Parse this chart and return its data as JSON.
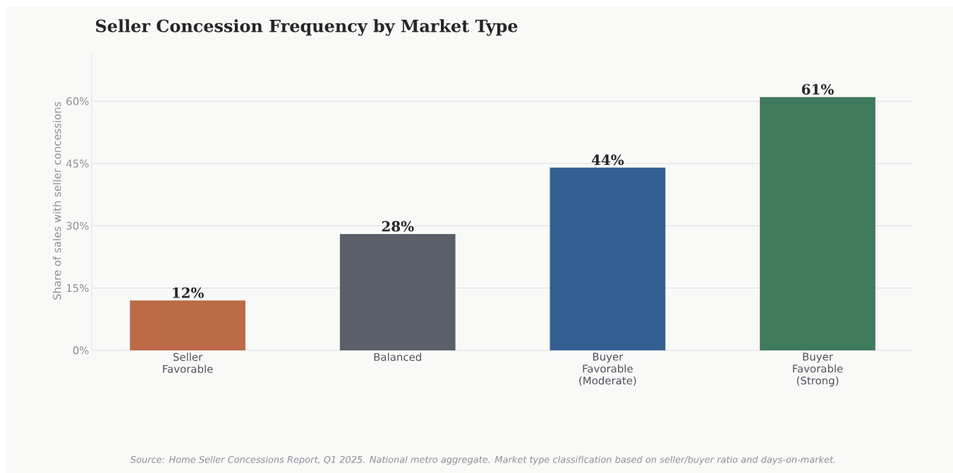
{
  "chart_data": {
    "type": "bar",
    "title": "Seller Concession Frequency by Market Type",
    "ylabel": "Share of sales with seller concessions",
    "categories": [
      "Seller Favorable",
      "Balanced",
      "Buyer Favorable (Moderate)",
      "Buyer Favorable (Strong)"
    ],
    "values": [
      12,
      28,
      44,
      61
    ],
    "colors": [
      "#bc6a48",
      "#5a5f69",
      "#335f92",
      "#3f7a5c"
    ],
    "value_labels": [
      "12%",
      "28%",
      "44%",
      "61%"
    ],
    "yticks": [
      {
        "value": 0,
        "label": "0%"
      },
      {
        "value": 15,
        "label": "15%"
      },
      {
        "value": 30,
        "label": "30%"
      },
      {
        "value": 45,
        "label": "45%"
      },
      {
        "value": 60,
        "label": "60%"
      }
    ],
    "ylim": [
      0,
      72
    ],
    "grid": "y",
    "annotations": [
      "Source: Home Seller Concessions Report, Q1 2025. National metro aggregate. Market type classification based on seller/buyer ratio and days-on-market."
    ]
  }
}
